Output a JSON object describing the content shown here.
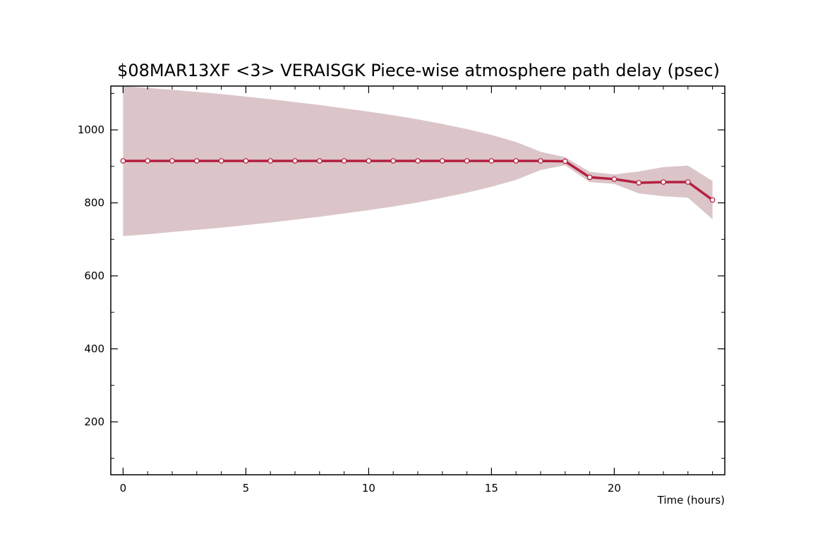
{
  "chart_data": {
    "type": "line",
    "title": "$08MAR13XF <3>  VERAISGK  Piece-wise atmosphere path delay (psec)",
    "xlabel": "Time (hours)",
    "ylabel": "",
    "xlim": [
      -0.5,
      24.5
    ],
    "ylim": [
      55,
      1120
    ],
    "x_ticks": [
      0,
      5,
      10,
      15,
      20
    ],
    "y_ticks": [
      200,
      400,
      600,
      800,
      1000
    ],
    "grid": false,
    "colors": {
      "line": "#b5203f",
      "band": "#dbc5c9",
      "marker_fill": "#ffffff"
    },
    "series": [
      {
        "x": [
          0,
          1,
          2,
          3,
          4,
          5,
          6,
          7,
          8,
          9,
          10,
          11,
          12,
          13,
          14,
          15,
          16,
          17,
          18,
          19,
          20,
          21,
          22,
          23,
          24
        ],
        "y": [
          915,
          915,
          915,
          915,
          915,
          915,
          915,
          915,
          915,
          915,
          915,
          915,
          915,
          915,
          915,
          915,
          915,
          915,
          914,
          870,
          865,
          855,
          857,
          857,
          808
        ],
        "upper": [
          1120,
          1115,
          1110,
          1104,
          1098,
          1091,
          1084,
          1076,
          1068,
          1059,
          1050,
          1040,
          1029,
          1016,
          1002,
          986,
          967,
          940,
          925,
          885,
          878,
          886,
          898,
          902,
          860
        ],
        "lower": [
          709,
          714,
          720,
          726,
          732,
          739,
          746,
          754,
          762,
          771,
          780,
          790,
          801,
          814,
          828,
          844,
          863,
          890,
          903,
          857,
          852,
          826,
          818,
          814,
          755
        ]
      }
    ]
  }
}
